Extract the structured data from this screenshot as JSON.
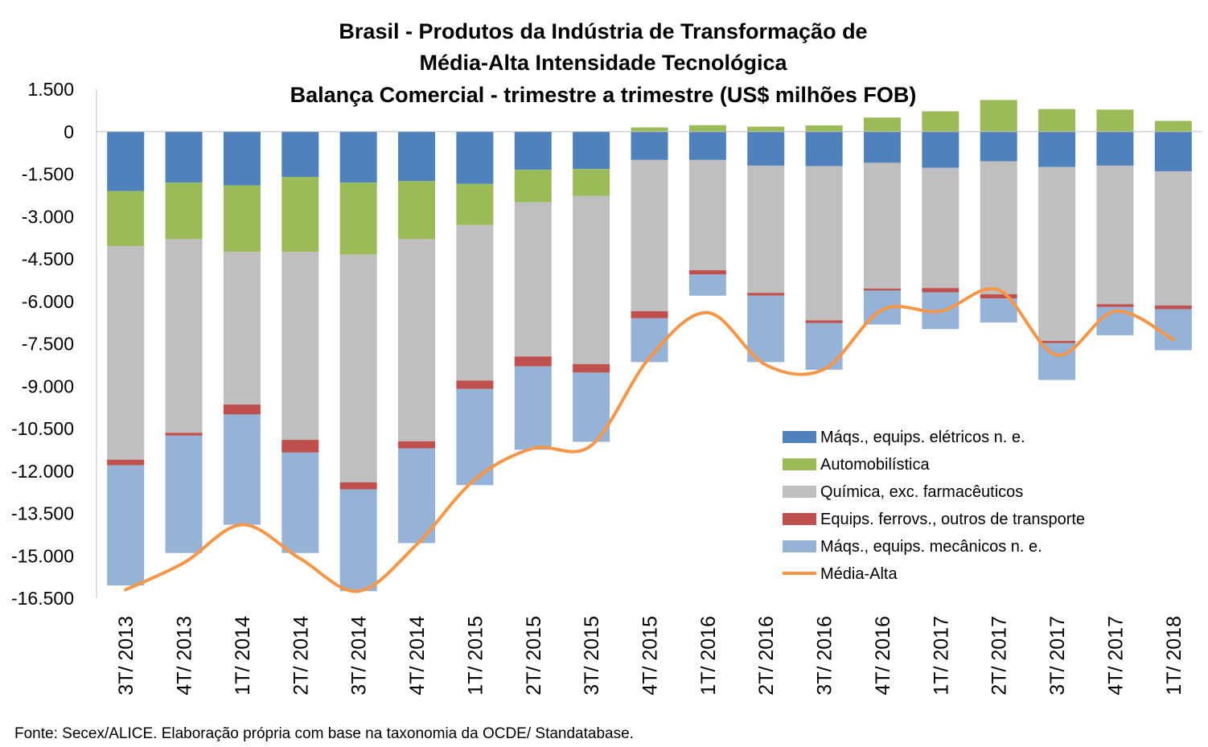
{
  "chart_data": {
    "type": "bar",
    "stacked": true,
    "title": [
      "Brasil - Produtos da Indústria de Transformação de",
      "Média-Alta Intensidade Tecnológica",
      "Balança Comercial - trimestre a trimestre (US$ milhões FOB)"
    ],
    "categories": [
      "3T/ 2013",
      "4T/ 2013",
      "1T/ 2014",
      "2T/ 2014",
      "3T/ 2014",
      "4T/ 2014",
      "1T/ 2015",
      "2T/ 2015",
      "3T/ 2015",
      "4T/ 2015",
      "1T/ 2016",
      "2T/ 2016",
      "3T/ 2016",
      "4T/ 2016",
      "1T/ 2017",
      "2T/ 2017",
      "3T/ 2017",
      "4T/ 2017",
      "1T/ 2018"
    ],
    "ylim": [
      -16500,
      1500
    ],
    "yticks": [
      1500,
      0,
      -1500,
      -3000,
      -4500,
      -6000,
      -7500,
      -9000,
      -10500,
      -12000,
      -13500,
      -15000,
      -16500
    ],
    "ytick_labels": [
      "1.500",
      "0",
      "-1.500",
      "-3.000",
      "-4.500",
      "-6.000",
      "-7.500",
      "-9.000",
      "-10.500",
      "-12.000",
      "-13.500",
      "-15.000",
      "-16.500"
    ],
    "series": [
      {
        "name": "Máqs., equips. elétricos n. e.",
        "color": "#4F81BD",
        "kind": "bar",
        "values": [
          -2100,
          -1800,
          -1900,
          -1600,
          -1800,
          -1750,
          -1850,
          -1350,
          -1320,
          -1000,
          -1000,
          -1200,
          -1220,
          -1100,
          -1280,
          -1050,
          -1250,
          -1200,
          -1400
        ]
      },
      {
        "name": "Automobilística",
        "color": "#9BBB59",
        "kind": "bar",
        "values": [
          -1950,
          -2000,
          -2350,
          -2650,
          -2550,
          -2050,
          -1450,
          -1150,
          -950,
          150,
          230,
          180,
          220,
          500,
          720,
          1120,
          800,
          780,
          380
        ]
      },
      {
        "name": "Química, exc. farmacêuticos",
        "color": "#BFBFBF",
        "kind": "bar",
        "values": [
          -7550,
          -6850,
          -5400,
          -6650,
          -8050,
          -7150,
          -5500,
          -5450,
          -5950,
          -5350,
          -3900,
          -4500,
          -5450,
          -4450,
          -4250,
          -4700,
          -6150,
          -4900,
          -4750
        ]
      },
      {
        "name": "Equips. ferrovs., outros de transporte",
        "color": "#C0504D",
        "kind": "bar",
        "values": [
          -200,
          -100,
          -350,
          -450,
          -250,
          -250,
          -300,
          -350,
          -300,
          -250,
          -150,
          -100,
          -100,
          -70,
          -150,
          -150,
          -80,
          -100,
          -130
        ]
      },
      {
        "name": "Máqs., equips. mecânicos  n. e.",
        "color": "#95B3D7",
        "kind": "bar",
        "values": [
          -4250,
          -4150,
          -3900,
          -3550,
          -3600,
          -3350,
          -3400,
          -2950,
          -2450,
          -1550,
          -750,
          -2350,
          -1650,
          -1200,
          -1300,
          -850,
          -1300,
          -1000,
          -1450
        ]
      },
      {
        "name": "Média-Alta",
        "color": "#F79646",
        "kind": "line",
        "values": [
          -16200,
          -15250,
          -13900,
          -15100,
          -16250,
          -14600,
          -12300,
          -11200,
          -11100,
          -8000,
          -6400,
          -8250,
          -8400,
          -6300,
          -6350,
          -5600,
          -7900,
          -6350,
          -7350
        ]
      }
    ]
  },
  "source_note": "Fonte: Secex/ALICE. Elaboração própria com base na taxonomia da OCDE/ Standatabase."
}
